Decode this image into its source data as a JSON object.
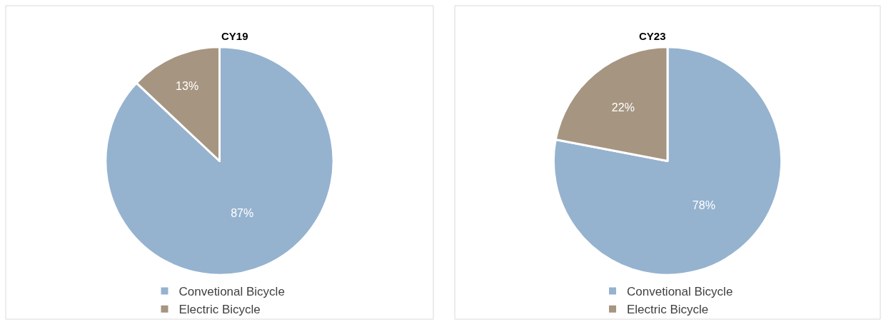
{
  "chart_data": [
    {
      "type": "pie",
      "title": "CY19",
      "categories": [
        "Convetional Bicycle",
        "Electric Bicycle"
      ],
      "values": [
        87,
        13
      ],
      "colors": [
        "#95b3cf",
        "#a69580"
      ],
      "value_labels": [
        "87%",
        "13%"
      ],
      "legend": "bottom"
    },
    {
      "type": "pie",
      "title": "CY23",
      "categories": [
        "Convetional Bicycle",
        "Electric Bicycle"
      ],
      "values": [
        78,
        22
      ],
      "colors": [
        "#95b3cf",
        "#a69580"
      ],
      "value_labels": [
        "78%",
        "22%"
      ],
      "legend": "bottom"
    }
  ]
}
